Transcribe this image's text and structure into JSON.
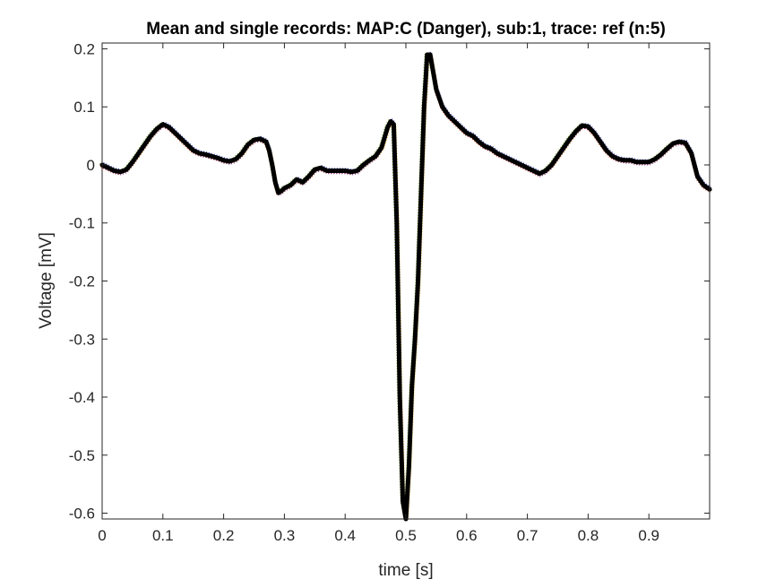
{
  "chart_data": {
    "type": "line",
    "title": "Mean and single records: MAP:C (Danger), sub:1, trace: ref (n:5)",
    "xlabel": "time [s]",
    "ylabel": "Voltage [mV]",
    "xlim": [
      0,
      1
    ],
    "ylim": [
      -0.61,
      0.21
    ],
    "xticks": [
      0,
      0.1,
      0.2,
      0.3,
      0.4,
      0.5,
      0.6,
      0.7,
      0.8,
      0.9
    ],
    "xtick_labels": [
      "0",
      "0.1",
      "0.2",
      "0.3",
      "0.4",
      "0.5",
      "0.6",
      "0.7",
      "0.8",
      "0.9"
    ],
    "yticks": [
      0.2,
      0.1,
      0,
      -0.1,
      -0.2,
      -0.3,
      -0.4,
      -0.5,
      -0.6
    ],
    "ytick_labels": [
      "0.2",
      "0.1",
      "0",
      "-0.1",
      "-0.2",
      "-0.3",
      "-0.4",
      "-0.5",
      "-0.6"
    ],
    "grid": false,
    "series": [
      {
        "role": "mean",
        "color": "#000000",
        "x": [
          0,
          0.01,
          0.02,
          0.03,
          0.04,
          0.05,
          0.06,
          0.07,
          0.08,
          0.09,
          0.1,
          0.11,
          0.12,
          0.13,
          0.14,
          0.15,
          0.16,
          0.17,
          0.18,
          0.19,
          0.2,
          0.21,
          0.22,
          0.23,
          0.24,
          0.25,
          0.26,
          0.27,
          0.275,
          0.28,
          0.285,
          0.29,
          0.295,
          0.3,
          0.31,
          0.32,
          0.33,
          0.34,
          0.35,
          0.36,
          0.37,
          0.38,
          0.39,
          0.4,
          0.41,
          0.42,
          0.43,
          0.44,
          0.45,
          0.46,
          0.47,
          0.475,
          0.48,
          0.485,
          0.49,
          0.495,
          0.5,
          0.505,
          0.51,
          0.515,
          0.52,
          0.525,
          0.53,
          0.535,
          0.54,
          0.545,
          0.55,
          0.56,
          0.57,
          0.58,
          0.59,
          0.6,
          0.61,
          0.62,
          0.63,
          0.64,
          0.65,
          0.66,
          0.67,
          0.68,
          0.69,
          0.7,
          0.71,
          0.72,
          0.73,
          0.74,
          0.75,
          0.76,
          0.77,
          0.78,
          0.79,
          0.8,
          0.81,
          0.82,
          0.83,
          0.84,
          0.85,
          0.86,
          0.87,
          0.88,
          0.89,
          0.9,
          0.91,
          0.92,
          0.93,
          0.94,
          0.95,
          0.96,
          0.97,
          0.98,
          0.99,
          1.0
        ],
        "y": [
          0,
          -0.005,
          -0.01,
          -0.012,
          -0.008,
          0.005,
          0.02,
          0.035,
          0.05,
          0.062,
          0.07,
          0.065,
          0.055,
          0.045,
          0.035,
          0.025,
          0.02,
          0.018,
          0.015,
          0.012,
          0.008,
          0.006,
          0.01,
          0.02,
          0.035,
          0.043,
          0.045,
          0.04,
          0.025,
          0.0,
          -0.03,
          -0.048,
          -0.045,
          -0.04,
          -0.035,
          -0.025,
          -0.03,
          -0.02,
          -0.008,
          -0.005,
          -0.01,
          -0.01,
          -0.01,
          -0.01,
          -0.012,
          -0.01,
          0.0,
          0.008,
          0.015,
          0.03,
          0.065,
          0.075,
          0.07,
          -0.1,
          -0.4,
          -0.58,
          -0.61,
          -0.52,
          -0.38,
          -0.3,
          -0.2,
          -0.05,
          0.1,
          0.19,
          0.19,
          0.16,
          0.13,
          0.1,
          0.085,
          0.075,
          0.065,
          0.055,
          0.05,
          0.04,
          0.032,
          0.028,
          0.02,
          0.015,
          0.01,
          0.005,
          0.0,
          -0.005,
          -0.01,
          -0.015,
          -0.01,
          0.0,
          0.015,
          0.03,
          0.045,
          0.058,
          0.068,
          0.066,
          0.055,
          0.04,
          0.025,
          0.015,
          0.01,
          0.008,
          0.008,
          0.005,
          0.005,
          0.005,
          0.01,
          0.018,
          0.028,
          0.037,
          0.04,
          0.038,
          0.02,
          -0.02,
          -0.035,
          -0.042
        ]
      }
    ]
  }
}
